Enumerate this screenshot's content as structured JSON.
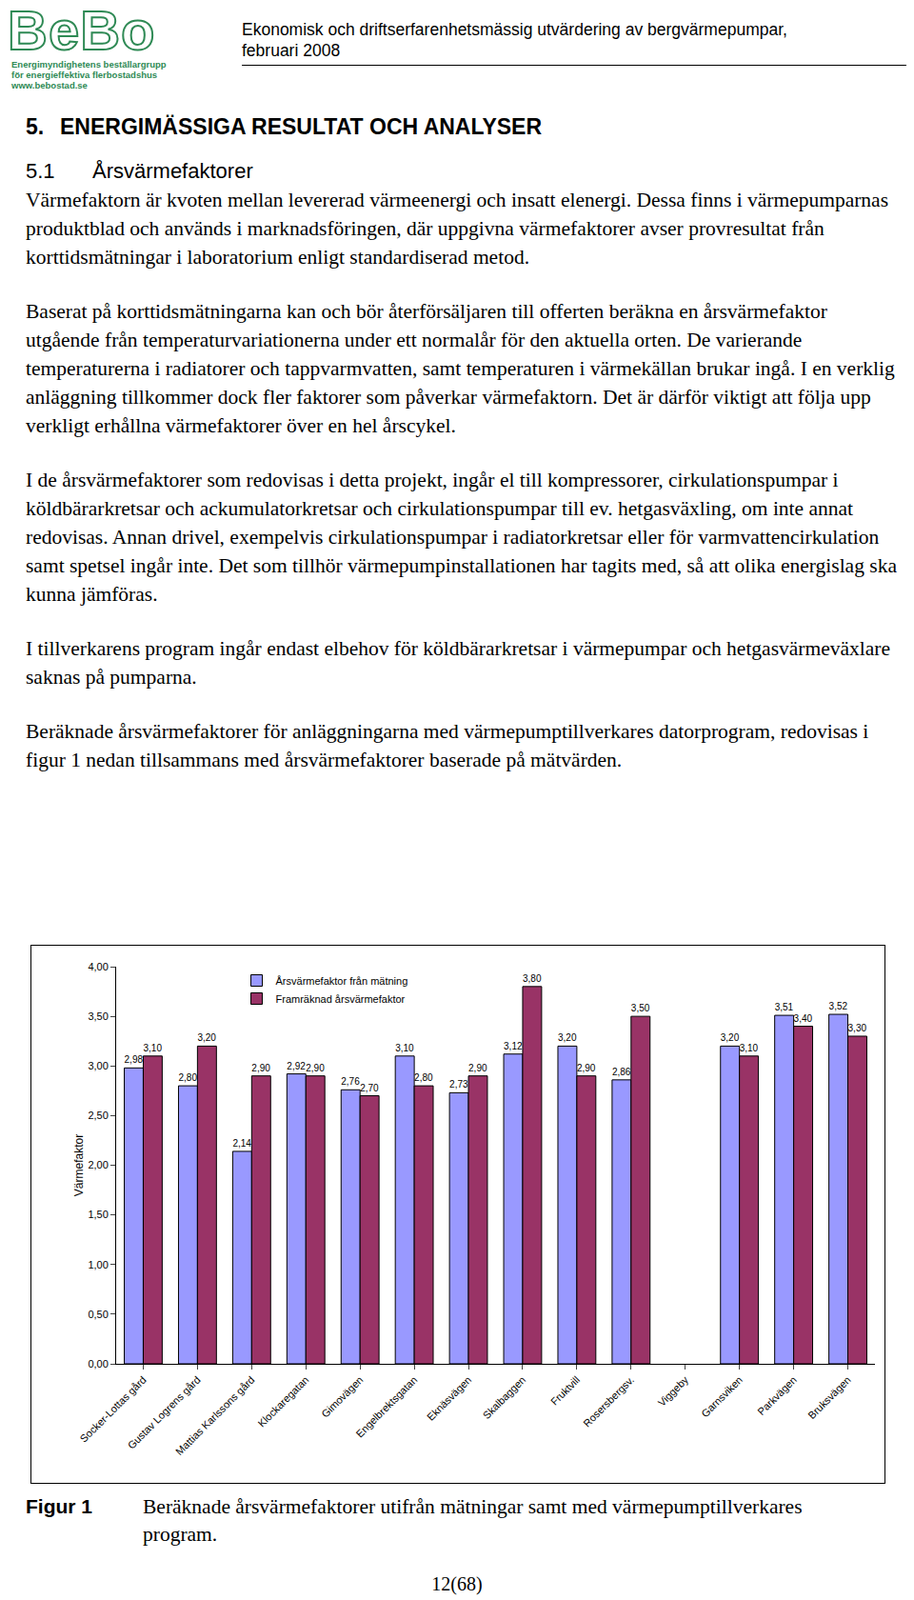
{
  "header": {
    "logo": "BeBo",
    "logo_lines": [
      "Energimyndighetens beställargrupp",
      "för energieffektiva flerbostadshus",
      "www.bebostad.se"
    ],
    "title_lines": [
      "Ekonomisk och driftserfarenhetsmässig utvärdering av bergvärmepumpar,",
      "februari 2008"
    ]
  },
  "section": {
    "number": "5.",
    "title": "ENERGIMÄSSIGA RESULTAT OCH ANALYSER"
  },
  "subsection": {
    "number": "5.1",
    "title": "Årsvärmefaktorer"
  },
  "paragraphs": [
    "Värmefaktorn är kvoten mellan levererad värmeenergi och insatt elenergi. Dessa finns i värmepumparnas produktblad och används i marknadsföringen, där uppgivna värmefaktorer avser provresultat från korttidsmätningar i laboratorium enligt standardiserad metod.",
    "Baserat på korttidsmätningarna kan och bör återförsäljaren till offerten beräkna en årsvärmefaktor utgående från temperaturvariationerna under ett normalår för den aktuella orten. De varierande temperaturerna i radiatorer och tappvarmvatten, samt temperaturen i värmekällan brukar ingå. I en verklig anläggning tillkommer dock fler faktorer som påverkar värmefaktorn. Det är därför viktigt att följa upp verkligt erhållna värmefaktorer över en hel årscykel.",
    "I de årsvärmefaktorer som redovisas i detta projekt, ingår el till kompressorer, cirkulationspumpar i köldbärarkretsar och ackumulatorkretsar och cirkulationspumpar till ev. hetgasväxling, om inte annat redovisas. Annan drivel, exempelvis cirkulationspumpar i radiatorkretsar eller för varmvattencirkulation samt spetsel ingår inte. Det som tillhör värmepumpinstallationen har tagits med, så att olika energislag ska kunna jämföras.",
    "I tillverkarens program ingår endast elbehov för köldbärarkretsar i värmepumpar och hetgasvärmeväxlare saknas på pumparna.",
    "Beräknade årsvärmefaktorer för anläggningarna med värmepumptillverkares datorprogram, redovisas i figur 1 nedan tillsammans med årsvärmefaktorer baserade på mätvärden."
  ],
  "chart_data": {
    "type": "bar",
    "y_label": "Värmefaktor",
    "categories": [
      "Socker-Lottas gård",
      "Gustav Logrens gård",
      "Mattias Karlssons gård",
      "Klockaregatan",
      "Gimovägen",
      "Engelbrektsgatan",
      "Eknäsvägen",
      "Skalbaggen",
      "Fruktvill",
      "Rosersbergsv.",
      "Viggeby",
      "Garnsviken",
      "Parkvägen",
      "Bruksvägen"
    ],
    "series": [
      {
        "name": "Årsvärmefaktor från mätning",
        "color": "#9999ff",
        "values": [
          2.98,
          2.8,
          2.14,
          2.92,
          2.76,
          3.1,
          2.73,
          3.12,
          3.2,
          2.86,
          null,
          3.2,
          3.51,
          3.52
        ],
        "value_labels": [
          "2,98",
          "2,80",
          "2,14",
          "2,92",
          "2,76",
          "3,10",
          "2,73",
          "3,12",
          "3,20",
          "2,86",
          null,
          "3,20",
          "3,51",
          "3,52"
        ]
      },
      {
        "name": "Framräknad årsvärmefaktor",
        "color": "#993366",
        "values": [
          3.1,
          3.2,
          2.9,
          2.9,
          2.7,
          2.8,
          2.9,
          3.8,
          2.9,
          3.5,
          null,
          3.1,
          3.4,
          3.3
        ],
        "value_labels": [
          "3,10",
          "3,20",
          "2,90",
          "2,90",
          "2,70",
          "2,80",
          "2,90",
          "3,80",
          "2,90",
          "3,50",
          null,
          "3,10",
          "3,40",
          "3,30"
        ]
      }
    ],
    "ylim": [
      0,
      4
    ],
    "yticks": [
      {
        "value": 0,
        "label": "0,00"
      },
      {
        "value": 0.5,
        "label": "0,50"
      },
      {
        "value": 1,
        "label": "1,00"
      },
      {
        "value": 1.5,
        "label": "1,50"
      },
      {
        "value": 2,
        "label": "2,00"
      },
      {
        "value": 2.5,
        "label": "2,50"
      },
      {
        "value": 3,
        "label": "3,00"
      },
      {
        "value": 3.5,
        "label": "3,50"
      },
      {
        "value": 4,
        "label": "4,00"
      }
    ],
    "grid": false,
    "legend": "top-left",
    "data_labels": true
  },
  "caption": {
    "label": "Figur 1",
    "text": "Beräknade årsvärmefaktorer utifrån mätningar samt med värmepumptillverkares program."
  },
  "page_number": "12(68)"
}
